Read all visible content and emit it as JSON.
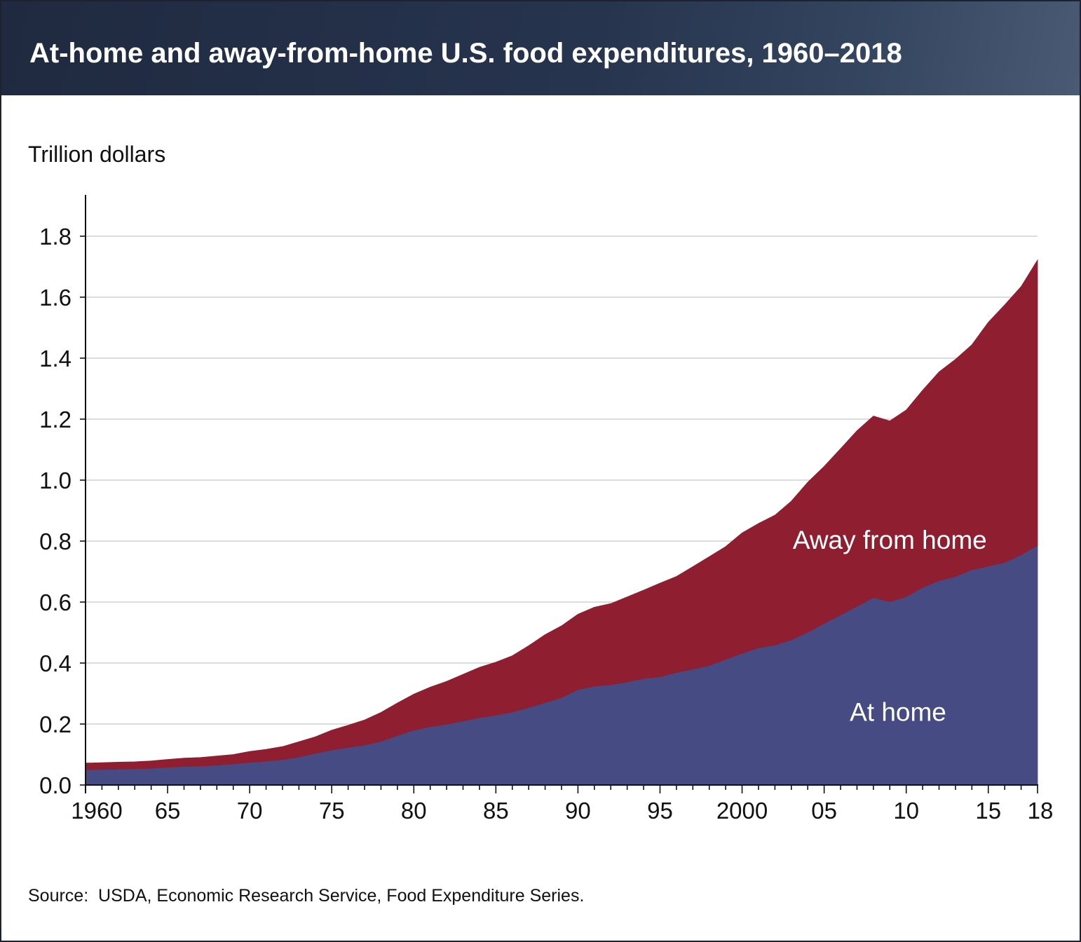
{
  "header": {
    "title": "At-home and away-from-home U.S. food expenditures, 1960–2018"
  },
  "source": "Source:  USDA, Economic Research Service, Food Expenditure Series.",
  "colors": {
    "at_home": "#464b84",
    "away_from_home": "#8e1e30",
    "gridline": "#c8c8c8",
    "axis": "#111111"
  },
  "chart_data": {
    "type": "area",
    "stacked": true,
    "title": "At-home and away-from-home U.S. food expenditures, 1960–2018",
    "ylabel": "Trillion dollars",
    "xlabel": "",
    "xlim": [
      1960,
      2018
    ],
    "ylim": [
      0,
      1.9
    ],
    "grid": true,
    "legend": "none (series labeled directly on areas)",
    "y_ticks": [
      0.0,
      0.2,
      0.4,
      0.6,
      0.8,
      1.0,
      1.2,
      1.4,
      1.6,
      1.8
    ],
    "y_tick_labels": [
      "0.0",
      "0.2",
      "0.4",
      "0.6",
      "0.8",
      "1.0",
      "1.2",
      "1.4",
      "1.6",
      "1.8"
    ],
    "x_ticks": [
      1960,
      1965,
      1970,
      1975,
      1980,
      1985,
      1990,
      1995,
      2000,
      2005,
      2010,
      2015,
      2018
    ],
    "x_tick_labels": [
      "1960",
      "65",
      "70",
      "75",
      "80",
      "85",
      "90",
      "95",
      "2000",
      "05",
      "10",
      "15",
      "18"
    ],
    "x": [
      1960,
      1961,
      1962,
      1963,
      1964,
      1965,
      1966,
      1967,
      1968,
      1969,
      1970,
      1971,
      1972,
      1973,
      1974,
      1975,
      1976,
      1977,
      1978,
      1979,
      1980,
      1981,
      1982,
      1983,
      1984,
      1985,
      1986,
      1987,
      1988,
      1989,
      1990,
      1991,
      1992,
      1993,
      1994,
      1995,
      1996,
      1997,
      1998,
      1999,
      2000,
      2001,
      2002,
      2003,
      2004,
      2005,
      2006,
      2007,
      2008,
      2009,
      2010,
      2011,
      2012,
      2013,
      2014,
      2015,
      2016,
      2017,
      2018
    ],
    "series": [
      {
        "name": "At home",
        "values": [
          0.05,
          0.051,
          0.052,
          0.053,
          0.055,
          0.058,
          0.061,
          0.062,
          0.065,
          0.069,
          0.074,
          0.078,
          0.083,
          0.092,
          0.104,
          0.115,
          0.123,
          0.131,
          0.143,
          0.162,
          0.18,
          0.191,
          0.199,
          0.21,
          0.221,
          0.229,
          0.239,
          0.254,
          0.27,
          0.287,
          0.313,
          0.324,
          0.329,
          0.338,
          0.349,
          0.355,
          0.369,
          0.38,
          0.392,
          0.412,
          0.432,
          0.45,
          0.459,
          0.476,
          0.501,
          0.53,
          0.558,
          0.586,
          0.615,
          0.601,
          0.618,
          0.648,
          0.67,
          0.684,
          0.706,
          0.718,
          0.73,
          0.755,
          0.786
        ]
      },
      {
        "name": "Away from home",
        "values": [
          0.022,
          0.022,
          0.023,
          0.023,
          0.024,
          0.026,
          0.027,
          0.028,
          0.03,
          0.031,
          0.036,
          0.039,
          0.043,
          0.05,
          0.054,
          0.065,
          0.073,
          0.082,
          0.095,
          0.107,
          0.118,
          0.13,
          0.141,
          0.153,
          0.165,
          0.174,
          0.185,
          0.203,
          0.223,
          0.235,
          0.247,
          0.259,
          0.266,
          0.279,
          0.29,
          0.307,
          0.315,
          0.336,
          0.357,
          0.37,
          0.395,
          0.408,
          0.426,
          0.455,
          0.492,
          0.515,
          0.545,
          0.576,
          0.595,
          0.593,
          0.612,
          0.647,
          0.685,
          0.712,
          0.738,
          0.8,
          0.845,
          0.88,
          0.936
        ]
      }
    ],
    "annotations": [
      {
        "text": "Away from home",
        "x": 2009,
        "y": 0.805
      },
      {
        "text": "At home",
        "x": 2009.5,
        "y": 0.24
      }
    ]
  }
}
